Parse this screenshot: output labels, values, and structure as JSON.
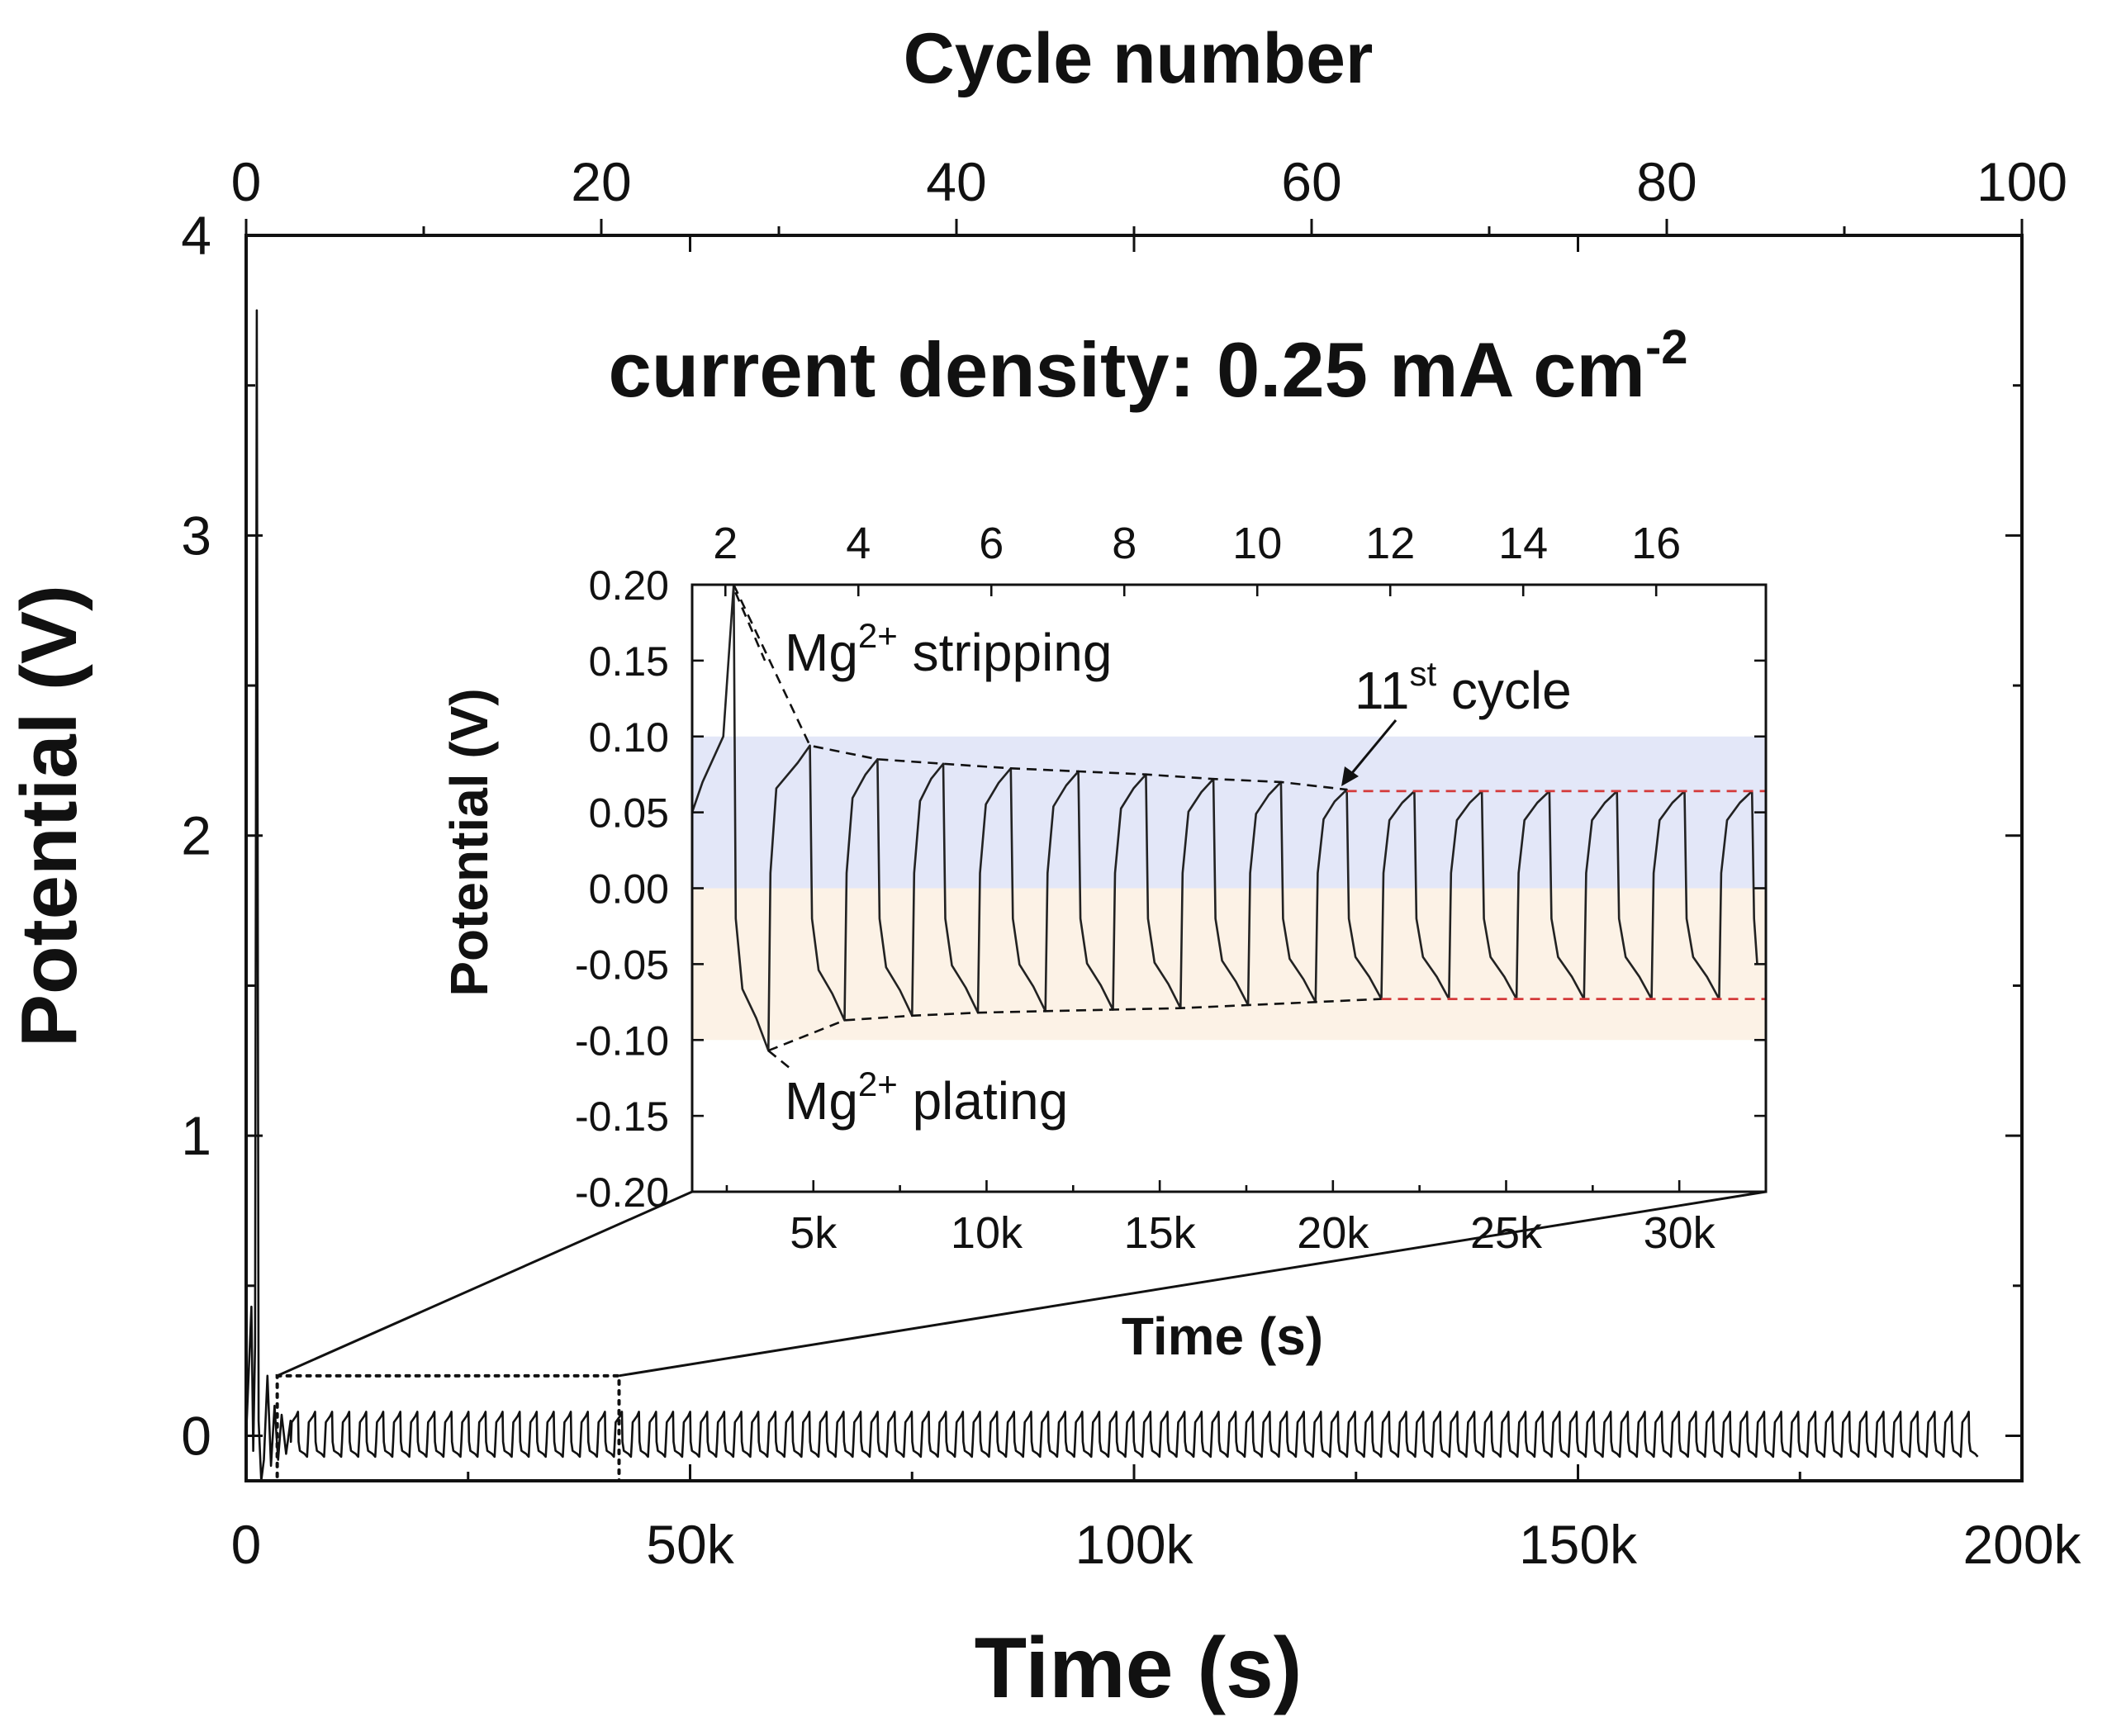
{
  "chart_data": [
    {
      "type": "line",
      "title": "current density: 0.25 mA cm",
      "title_superscript": "-2",
      "xlabel": "Time (s)",
      "ylabel": "Potential (V)",
      "top_xlabel": "Cycle number",
      "xlim": [
        0,
        200000
      ],
      "ylim": [
        -0.15,
        4
      ],
      "top_xlim": [
        0,
        100
      ],
      "xticks": [
        0,
        50000,
        100000,
        150000,
        200000
      ],
      "xtick_labels": [
        "0",
        "50k",
        "100k",
        "150k",
        "200k"
      ],
      "yticks": [
        0,
        1,
        2,
        3,
        4
      ],
      "ytick_labels": [
        "0",
        "1",
        "2",
        "3",
        "4"
      ],
      "top_xticks": [
        0,
        20,
        40,
        60,
        80,
        100
      ],
      "top_xtick_labels": [
        "0",
        "20",
        "40",
        "60",
        "80",
        "100"
      ],
      "series": [
        {
          "description_of_trace": "initial spikes then regular oscillation",
          "x": [
            0,
            600,
            800,
            1000,
            1200,
            1400,
            1700,
            2000,
            2400,
            2800,
            3200,
            3600,
            4000,
            4500,
            5000
          ],
          "y": [
            0.0,
            0.43,
            -0.05,
            0.3,
            3.75,
            0.05,
            -0.15,
            -0.08,
            0.2,
            -0.1,
            0.1,
            -0.08,
            0.07,
            -0.06,
            0.05
          ]
        }
      ],
      "oscillation": {
        "x_start": 5000,
        "x_end": 194000,
        "period_s": 1920,
        "max_V": 0.08,
        "min_V": -0.07
      },
      "zoom_box": {
        "x": [
          3500,
          42000
        ],
        "y": [
          -0.15,
          0.2
        ]
      }
    },
    {
      "type": "line",
      "role": "inset",
      "xlabel": "Time (s)",
      "ylabel": "Potential (V)",
      "xlim": [
        1500,
        32500
      ],
      "ylim": [
        -0.2,
        0.2
      ],
      "top_xlim": [
        1.5,
        17.65
      ],
      "xticks": [
        5000,
        10000,
        15000,
        20000,
        25000,
        30000
      ],
      "xtick_labels": [
        "5k",
        "10k",
        "15k",
        "20k",
        "25k",
        "30k"
      ],
      "yticks": [
        0.2,
        0.15,
        0.1,
        0.05,
        0.0,
        -0.05,
        -0.1,
        -0.15,
        -0.2
      ],
      "ytick_labels": [
        "0.20",
        "0.15",
        "0.10",
        "0.05",
        "0.00",
        "-0.05",
        "-0.10",
        "-0.15",
        "-0.20"
      ],
      "top_xticks": [
        2,
        4,
        6,
        8,
        10,
        12,
        14,
        16
      ],
      "top_xtick_labels": [
        "2",
        "4",
        "6",
        "8",
        "10",
        "12",
        "14",
        "16"
      ],
      "stripping_peaks": {
        "x": [
          2700,
          4900,
          6850,
          8750,
          10700,
          12650,
          14600,
          16550,
          18500,
          20400,
          22350,
          24300,
          26250,
          28200,
          30150,
          32100
        ],
        "y": [
          0.2,
          0.094,
          0.085,
          0.082,
          0.079,
          0.077,
          0.075,
          0.072,
          0.07,
          0.065,
          0.064,
          0.064,
          0.064,
          0.064,
          0.064,
          0.064
        ]
      },
      "plating_troughs": {
        "x": [
          3700,
          5900,
          7850,
          9750,
          11700,
          13650,
          15600,
          17550,
          19500,
          21400,
          23350,
          25300,
          27250,
          29200,
          31150
        ],
        "y": [
          -0.107,
          -0.087,
          -0.084,
          -0.082,
          -0.081,
          -0.08,
          -0.079,
          -0.077,
          -0.075,
          -0.073,
          -0.073,
          -0.073,
          -0.073,
          -0.073,
          -0.073
        ]
      },
      "shaded_bands": [
        {
          "y": [
            0.0,
            0.1
          ],
          "color": "#e3e7f8"
        },
        {
          "y": [
            -0.1,
            0.0
          ],
          "color": "#fcf2e6"
        }
      ],
      "steady_lines": {
        "upper": 0.064,
        "lower": -0.073,
        "color": "#d43a3a",
        "x_from": 20400
      },
      "annotations": {
        "stripping_prefix": "Mg",
        "stripping_sup": "2+",
        "stripping_suffix": " stripping",
        "plating_prefix": "Mg",
        "plating_sup": "2+",
        "plating_suffix": " plating",
        "cycle_prefix": "11",
        "cycle_sup": "st",
        "cycle_suffix": " cycle"
      }
    }
  ]
}
